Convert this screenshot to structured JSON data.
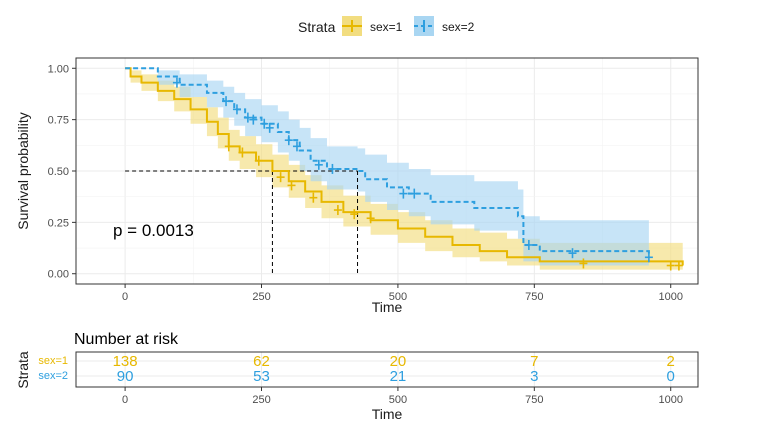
{
  "chart_data": [
    {
      "type": "line",
      "subtype": "kaplan-meier",
      "title": "",
      "xlabel": "Time",
      "ylabel": "Survival probability",
      "xlim": [
        -90,
        1050
      ],
      "ylim": [
        -0.05,
        1.05
      ],
      "x_ticks": [
        0,
        250,
        500,
        750,
        1000
      ],
      "y_ticks": [
        0,
        0.25,
        0.5,
        0.75,
        1.0
      ],
      "x_tick_labels": [
        "0",
        "250",
        "500",
        "750",
        "1000"
      ],
      "y_tick_labels": [
        "0.00",
        "0.25",
        "0.50",
        "0.75",
        "1.00"
      ],
      "grid": true,
      "legend": {
        "title": "Strata",
        "position": "top",
        "entries": [
          "sex=1",
          "sex=2"
        ]
      },
      "pvalue_text": "p = 0.0013",
      "median_lines": [
        {
          "series": "sex=1",
          "x": 270,
          "y": 0.5
        },
        {
          "series": "sex=2",
          "x": 426,
          "y": 0.5
        }
      ],
      "series": [
        {
          "name": "sex=1",
          "color": "#E7B800",
          "band_color": "#F2DD80",
          "steps": [
            [
              0,
              1.0
            ],
            [
              10,
              0.96
            ],
            [
              30,
              0.93
            ],
            [
              60,
              0.89
            ],
            [
              90,
              0.85
            ],
            [
              120,
              0.8
            ],
            [
              150,
              0.74
            ],
            [
              170,
              0.68
            ],
            [
              190,
              0.62
            ],
            [
              210,
              0.59
            ],
            [
              240,
              0.55
            ],
            [
              270,
              0.5
            ],
            [
              300,
              0.45
            ],
            [
              330,
              0.4
            ],
            [
              360,
              0.35
            ],
            [
              400,
              0.3
            ],
            [
              450,
              0.26
            ],
            [
              500,
              0.22
            ],
            [
              550,
              0.18
            ],
            [
              600,
              0.14
            ],
            [
              650,
              0.11
            ],
            [
              700,
              0.08
            ],
            [
              760,
              0.06
            ],
            [
              1022,
              0.04
            ]
          ],
          "upper": [
            [
              0,
              1.0
            ],
            [
              10,
              0.99
            ],
            [
              30,
              0.97
            ],
            [
              60,
              0.94
            ],
            [
              90,
              0.91
            ],
            [
              120,
              0.86
            ],
            [
              150,
              0.81
            ],
            [
              170,
              0.76
            ],
            [
              190,
              0.7
            ],
            [
              210,
              0.67
            ],
            [
              240,
              0.63
            ],
            [
              270,
              0.58
            ],
            [
              300,
              0.53
            ],
            [
              330,
              0.48
            ],
            [
              360,
              0.43
            ],
            [
              400,
              0.38
            ],
            [
              450,
              0.34
            ],
            [
              500,
              0.3
            ],
            [
              550,
              0.26
            ],
            [
              600,
              0.22
            ],
            [
              650,
              0.2
            ],
            [
              700,
              0.17
            ],
            [
              760,
              0.15
            ],
            [
              1022,
              0.12
            ]
          ],
          "lower": [
            [
              0,
              1.0
            ],
            [
              10,
              0.93
            ],
            [
              30,
              0.89
            ],
            [
              60,
              0.84
            ],
            [
              90,
              0.79
            ],
            [
              120,
              0.73
            ],
            [
              150,
              0.67
            ],
            [
              170,
              0.61
            ],
            [
              190,
              0.55
            ],
            [
              210,
              0.51
            ],
            [
              240,
              0.47
            ],
            [
              270,
              0.42
            ],
            [
              300,
              0.37
            ],
            [
              330,
              0.32
            ],
            [
              360,
              0.27
            ],
            [
              400,
              0.23
            ],
            [
              450,
              0.19
            ],
            [
              500,
              0.15
            ],
            [
              550,
              0.11
            ],
            [
              600,
              0.08
            ],
            [
              650,
              0.06
            ],
            [
              700,
              0.04
            ],
            [
              760,
              0.02
            ],
            [
              1022,
              0.01
            ]
          ],
          "censor": [
            [
              190,
              0.62
            ],
            [
              215,
              0.59
            ],
            [
              245,
              0.55
            ],
            [
              285,
              0.47
            ],
            [
              305,
              0.43
            ],
            [
              345,
              0.37
            ],
            [
              390,
              0.31
            ],
            [
              420,
              0.29
            ],
            [
              450,
              0.27
            ],
            [
              840,
              0.05
            ],
            [
              1000,
              0.04
            ],
            [
              1015,
              0.04
            ]
          ]
        },
        {
          "name": "sex=2",
          "color": "#2E9FDF",
          "band_color": "#A9D6F2",
          "steps": [
            [
              0,
              1.0
            ],
            [
              60,
              0.96
            ],
            [
              100,
              0.92
            ],
            [
              150,
              0.88
            ],
            [
              180,
              0.84
            ],
            [
              200,
              0.8
            ],
            [
              220,
              0.76
            ],
            [
              250,
              0.73
            ],
            [
              280,
              0.69
            ],
            [
              300,
              0.65
            ],
            [
              320,
              0.6
            ],
            [
              340,
              0.55
            ],
            [
              370,
              0.51
            ],
            [
              426,
              0.5
            ],
            [
              440,
              0.46
            ],
            [
              480,
              0.42
            ],
            [
              520,
              0.39
            ],
            [
              560,
              0.35
            ],
            [
              640,
              0.32
            ],
            [
              720,
              0.28
            ],
            [
              730,
              0.14
            ],
            [
              760,
              0.11
            ],
            [
              960,
              0.08
            ]
          ],
          "upper": [
            [
              0,
              1.0
            ],
            [
              60,
              0.99
            ],
            [
              100,
              0.97
            ],
            [
              150,
              0.94
            ],
            [
              180,
              0.91
            ],
            [
              200,
              0.88
            ],
            [
              220,
              0.85
            ],
            [
              250,
              0.82
            ],
            [
              280,
              0.79
            ],
            [
              300,
              0.75
            ],
            [
              320,
              0.71
            ],
            [
              340,
              0.66
            ],
            [
              370,
              0.62
            ],
            [
              426,
              0.61
            ],
            [
              440,
              0.58
            ],
            [
              480,
              0.54
            ],
            [
              520,
              0.51
            ],
            [
              560,
              0.48
            ],
            [
              640,
              0.45
            ],
            [
              720,
              0.41
            ],
            [
              730,
              0.28
            ],
            [
              760,
              0.26
            ],
            [
              960,
              0.26
            ]
          ],
          "lower": [
            [
              0,
              1.0
            ],
            [
              60,
              0.92
            ],
            [
              100,
              0.86
            ],
            [
              150,
              0.81
            ],
            [
              180,
              0.76
            ],
            [
              200,
              0.72
            ],
            [
              220,
              0.67
            ],
            [
              250,
              0.64
            ],
            [
              280,
              0.59
            ],
            [
              300,
              0.55
            ],
            [
              320,
              0.5
            ],
            [
              340,
              0.45
            ],
            [
              370,
              0.41
            ],
            [
              426,
              0.4
            ],
            [
              440,
              0.35
            ],
            [
              480,
              0.31
            ],
            [
              520,
              0.28
            ],
            [
              560,
              0.24
            ],
            [
              640,
              0.21
            ],
            [
              720,
              0.17
            ],
            [
              730,
              0.06
            ],
            [
              760,
              0.04
            ],
            [
              960,
              0.02
            ]
          ],
          "censor": [
            [
              95,
              0.93
            ],
            [
              185,
              0.84
            ],
            [
              205,
              0.8
            ],
            [
              225,
              0.76
            ],
            [
              235,
              0.75
            ],
            [
              255,
              0.73
            ],
            [
              265,
              0.71
            ],
            [
              300,
              0.65
            ],
            [
              315,
              0.62
            ],
            [
              355,
              0.53
            ],
            [
              380,
              0.51
            ],
            [
              510,
              0.39
            ],
            [
              530,
              0.39
            ],
            [
              740,
              0.14
            ],
            [
              820,
              0.1
            ],
            [
              960,
              0.08
            ]
          ]
        }
      ]
    },
    {
      "type": "table",
      "title": "Number at risk",
      "xlabel": "Time",
      "ylabel": "Strata",
      "x_ticks": [
        0,
        250,
        500,
        750,
        1000
      ],
      "x_tick_labels": [
        "0",
        "250",
        "500",
        "750",
        "1000"
      ],
      "rows": [
        {
          "name": "sex=1",
          "color": "#E7B800",
          "values": [
            "138",
            "62",
            "20",
            "7",
            "2"
          ]
        },
        {
          "name": "sex=2",
          "color": "#2E9FDF",
          "values": [
            "90",
            "53",
            "21",
            "3",
            "0"
          ]
        }
      ]
    }
  ]
}
